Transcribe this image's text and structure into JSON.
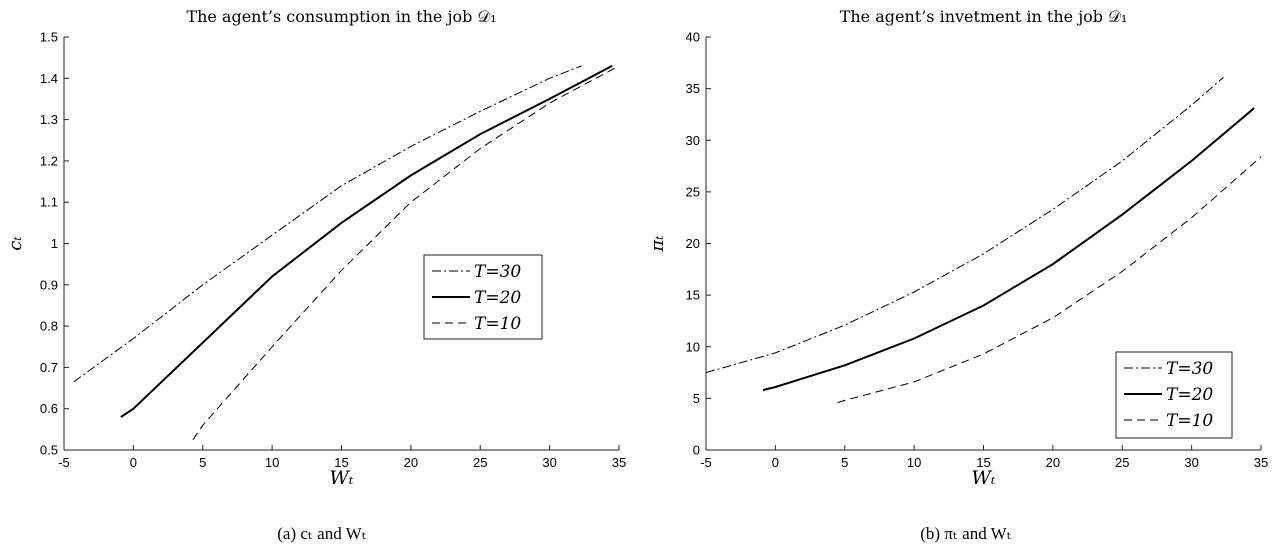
{
  "chart_data": [
    {
      "type": "line",
      "title": "The agent’s consumption in the job 𝒟₁",
      "xlabel": "Wₜ",
      "ylabel": "cₜ",
      "xlim": [
        -5,
        35
      ],
      "ylim": [
        0.5,
        1.5
      ],
      "xticks": [
        "-5",
        "0",
        "5",
        "10",
        "15",
        "20",
        "25",
        "30",
        "35"
      ],
      "yticks": [
        "0.5",
        "0.6",
        "0.7",
        "0.8",
        "0.9",
        "1",
        "1.1",
        "1.2",
        "1.3",
        "1.4",
        "1.5"
      ],
      "legend_position": "right-middle",
      "caption": "(a) cₜ and Wₜ",
      "series": [
        {
          "name": "T=30",
          "style": "dashdot",
          "width": 1,
          "x": [
            -4.3,
            0,
            5,
            10,
            15,
            20,
            25,
            30,
            32.3
          ],
          "y": [
            0.665,
            0.77,
            0.9,
            1.02,
            1.14,
            1.235,
            1.32,
            1.4,
            1.43
          ]
        },
        {
          "name": "T=20",
          "style": "solid",
          "width": 2,
          "x": [
            -0.9,
            0,
            5,
            10,
            15,
            20,
            25,
            30,
            34.5
          ],
          "y": [
            0.58,
            0.6,
            0.76,
            0.92,
            1.05,
            1.165,
            1.265,
            1.35,
            1.43
          ]
        },
        {
          "name": "T=10",
          "style": "dash",
          "width": 1,
          "x": [
            4.3,
            5,
            10,
            15,
            20,
            25,
            30,
            35
          ],
          "y": [
            0.525,
            0.56,
            0.75,
            0.935,
            1.1,
            1.23,
            1.34,
            1.43
          ]
        }
      ]
    },
    {
      "type": "line",
      "title": "The agent’s invetment in the job 𝒟₁",
      "xlabel": "Wₜ",
      "ylabel": "πₜ",
      "xlim": [
        -5,
        35
      ],
      "ylim": [
        0,
        40
      ],
      "xticks": [
        "-5",
        "0",
        "5",
        "10",
        "15",
        "20",
        "25",
        "30",
        "35"
      ],
      "yticks": [
        "0",
        "5",
        "10",
        "15",
        "20",
        "25",
        "30",
        "35",
        "40"
      ],
      "legend_position": "bottom-right",
      "caption": "(b) πₜ and Wₜ",
      "series": [
        {
          "name": "T=30",
          "style": "dashdot",
          "width": 1,
          "x": [
            -5,
            0,
            5,
            10,
            15,
            20,
            25,
            30,
            32.3
          ],
          "y": [
            7.5,
            9.4,
            12.1,
            15.3,
            19.0,
            23.3,
            28.0,
            33.4,
            36.1
          ]
        },
        {
          "name": "T=20",
          "style": "solid",
          "width": 2,
          "x": [
            -0.9,
            0,
            5,
            10,
            15,
            20,
            25,
            30,
            34.5
          ],
          "y": [
            5.8,
            6.1,
            8.2,
            10.8,
            14.0,
            18.0,
            22.8,
            28.0,
            33.1
          ]
        },
        {
          "name": "T=10",
          "style": "dash",
          "width": 1,
          "x": [
            4.5,
            5,
            10,
            15,
            20,
            25,
            30,
            35
          ],
          "y": [
            4.6,
            4.8,
            6.6,
            9.3,
            12.8,
            17.3,
            22.5,
            28.4
          ]
        }
      ]
    }
  ]
}
